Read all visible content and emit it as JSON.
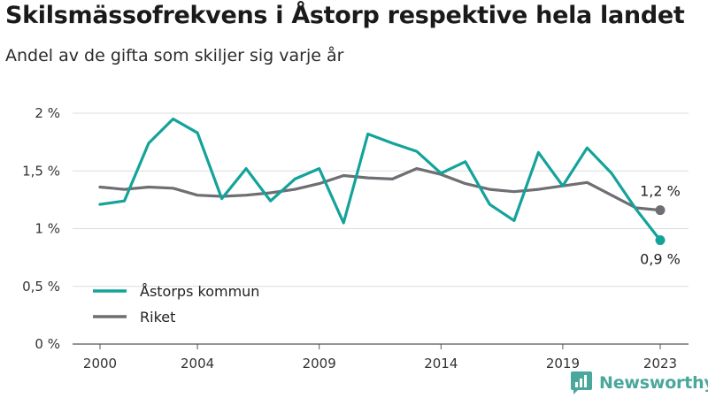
{
  "title": "Skilsmässofrekvens i Åstorp respektive hela landet",
  "subtitle": "Andel av de gifta som skiljer sig varje år",
  "brand": "Newsworthy",
  "chart_data": {
    "type": "line",
    "x": [
      2000,
      2001,
      2002,
      2003,
      2004,
      2005,
      2006,
      2007,
      2008,
      2009,
      2010,
      2011,
      2012,
      2013,
      2014,
      2015,
      2016,
      2017,
      2018,
      2019,
      2020,
      2021,
      2022,
      2023
    ],
    "x_tick_labels": [
      "2000",
      "2004",
      "2009",
      "2014",
      "2019",
      "2023"
    ],
    "y_tick_labels": [
      "0 %",
      "0,5 %",
      "1 %",
      "1,5 %",
      "2 %"
    ],
    "ylim": [
      0,
      2
    ],
    "grid": true,
    "legend_position": "bottom-left",
    "series": [
      {
        "name": "Åstorps kommun",
        "color": "#14a39a",
        "values": [
          1.21,
          1.24,
          1.74,
          1.95,
          1.83,
          1.26,
          1.52,
          1.24,
          1.43,
          1.52,
          1.05,
          1.82,
          1.74,
          1.67,
          1.48,
          1.58,
          1.21,
          1.07,
          1.66,
          1.37,
          1.7,
          1.48,
          1.17,
          0.9
        ],
        "end_label": "0,9 %"
      },
      {
        "name": "Riket",
        "color": "#6e6e73",
        "values": [
          1.36,
          1.34,
          1.36,
          1.35,
          1.29,
          1.28,
          1.29,
          1.31,
          1.34,
          1.39,
          1.46,
          1.44,
          1.43,
          1.52,
          1.47,
          1.39,
          1.34,
          1.32,
          1.34,
          1.37,
          1.4,
          1.29,
          1.18,
          1.16
        ],
        "end_label": "1,2 %"
      }
    ]
  }
}
